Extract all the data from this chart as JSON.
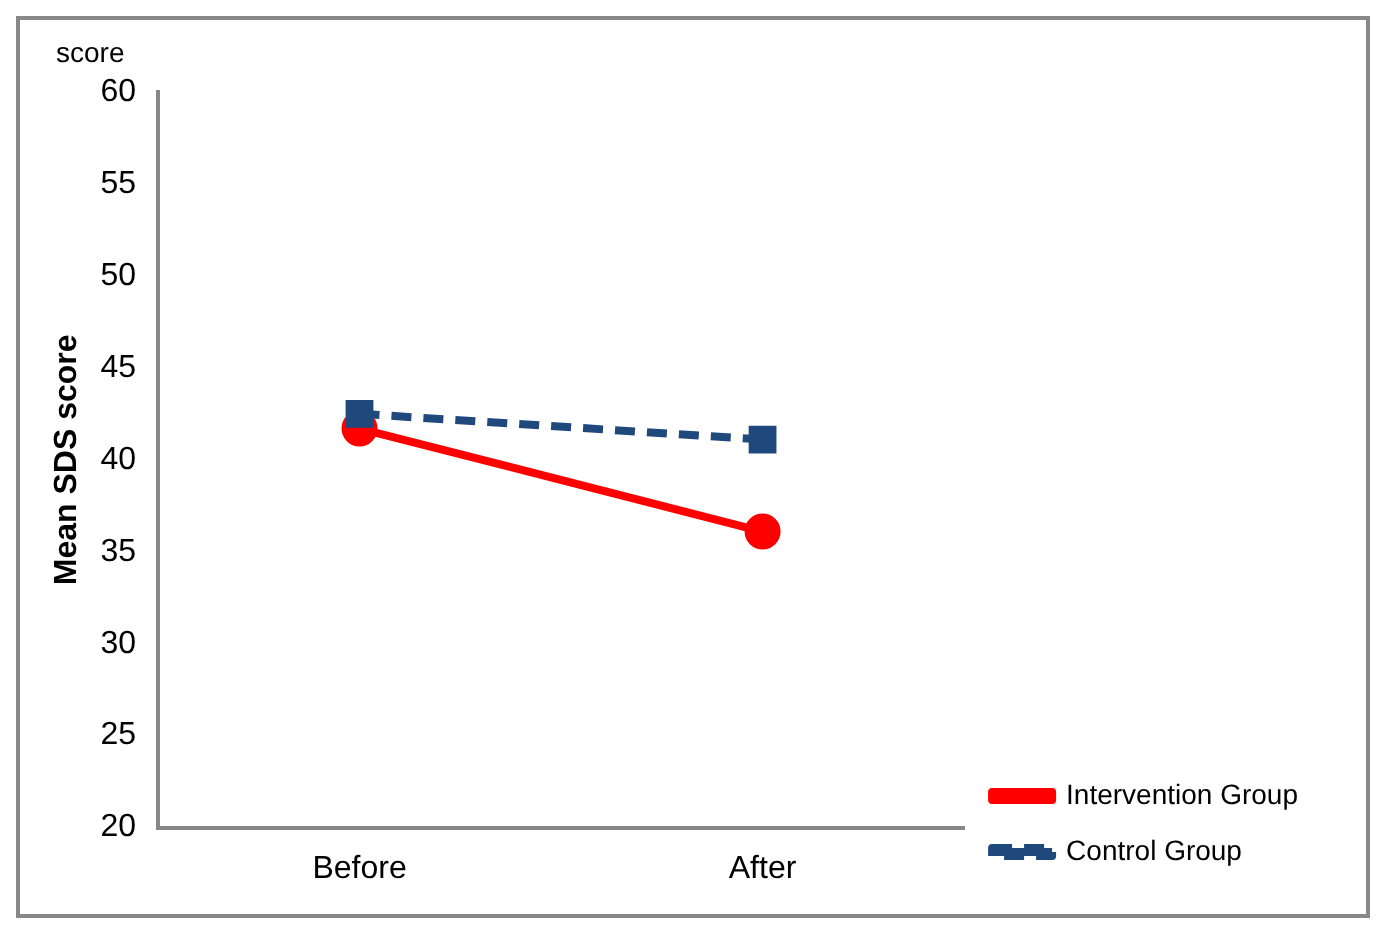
{
  "chart_data": {
    "type": "line",
    "ylabel": "Mean SDS score",
    "annotations": [
      "score"
    ],
    "categories": [
      "Before",
      "After"
    ],
    "series": [
      {
        "name": "Intervention Group",
        "color": "#ff0000",
        "values": [
          41.7,
          36.1
        ],
        "marker": "circle",
        "line_style": "solid"
      },
      {
        "name": "Control Group",
        "color": "#1f497d",
        "values": [
          42.5,
          41.1
        ],
        "marker": "square",
        "line_style": "dashed"
      }
    ],
    "ylim": [
      20,
      60
    ],
    "yticks": [
      20,
      25,
      30,
      35,
      40,
      45,
      50,
      55,
      60
    ],
    "grid": false,
    "legend": "right"
  }
}
